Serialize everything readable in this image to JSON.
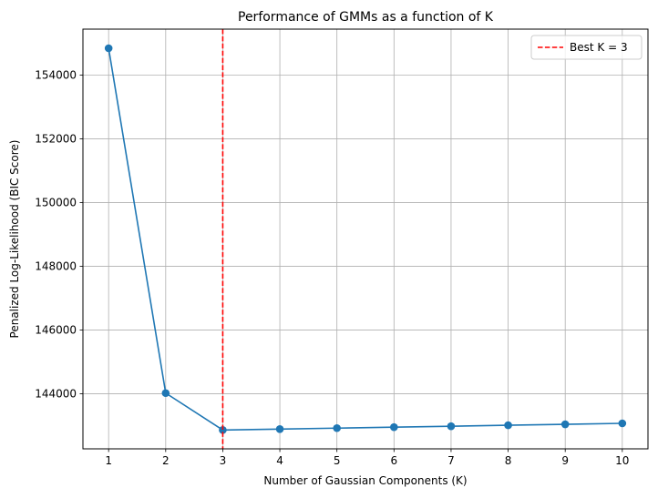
{
  "chart_data": {
    "type": "line",
    "title": "Performance of GMMs as a function of K",
    "xlabel": "Number of Gaussian Components (K)",
    "ylabel": "Penalized Log-Likelihood (BIC Score)",
    "x": [
      1,
      2,
      3,
      4,
      5,
      6,
      7,
      8,
      9,
      10
    ],
    "series": [
      {
        "values": [
          154840,
          144020,
          142860,
          142890,
          142920,
          142950,
          142980,
          143010,
          143040,
          143070
        ],
        "color": "#1f77b4",
        "marker": "circle"
      }
    ],
    "xlim": [
      0.55,
      10.45
    ],
    "ylim": [
      142270,
      155440
    ],
    "xticks": [
      "1",
      "2",
      "3",
      "4",
      "5",
      "6",
      "7",
      "8",
      "9",
      "10"
    ],
    "yticks": [
      "144000",
      "146000",
      "148000",
      "150000",
      "152000",
      "154000"
    ],
    "ytick_values": [
      144000,
      146000,
      148000,
      150000,
      152000,
      154000
    ],
    "grid": true,
    "vline": {
      "x": 3,
      "color": "#ff0000",
      "style": "dashed",
      "label": "Best K = 3"
    },
    "legend": {
      "position": "top-right",
      "entries": [
        "Best K = 3"
      ]
    }
  }
}
